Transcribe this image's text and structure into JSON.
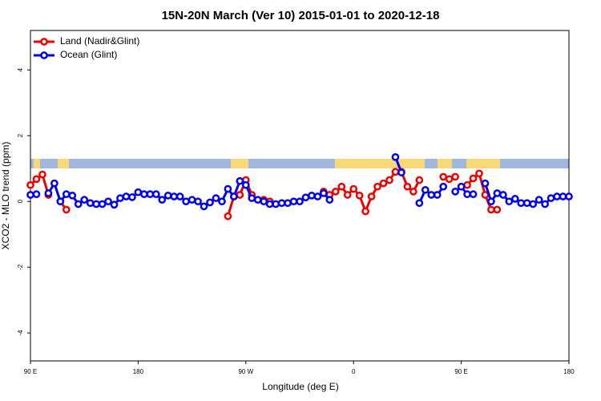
{
  "chart_data": {
    "type": "line",
    "title": "15N-20N March (Ver 10)   2015-01-01 to 2020-12-18",
    "x_label": "Longitude (deg E)",
    "y_label": "XCO2 - MLO trend (ppm)",
    "x": [
      90,
      95,
      100,
      105,
      110,
      115,
      120,
      125,
      130,
      135,
      140,
      145,
      150,
      155,
      160,
      165,
      170,
      175,
      180,
      185,
      190,
      195,
      200,
      205,
      210,
      215,
      220,
      225,
      230,
      235,
      240,
      245,
      250,
      255,
      260,
      265,
      270,
      275,
      280,
      285,
      290,
      295,
      300,
      305,
      310,
      315,
      320,
      325,
      330,
      335,
      340,
      345,
      350,
      355,
      360,
      365,
      370,
      375,
      380,
      385,
      390,
      395,
      400,
      405,
      410,
      415,
      420,
      425,
      430,
      435,
      440,
      445,
      450,
      455,
      460,
      465,
      470,
      475,
      480,
      485,
      490,
      495,
      500,
      505,
      510,
      515,
      520,
      525,
      530,
      535,
      540
    ],
    "xlim": [
      90,
      540
    ],
    "xticks": [
      {
        "value": 90,
        "label": "90 E"
      },
      180,
      {
        "value": 270,
        "label": "90 W"
      },
      {
        "value": 360,
        "label": "0"
      },
      {
        "value": 450,
        "label": "90 E"
      },
      {
        "value": 540,
        "label": "180"
      }
    ],
    "ylim": [
      -4.85,
      5.2
    ],
    "yticks": [
      -4,
      -2,
      0,
      2,
      4
    ],
    "legend": "top-left",
    "series": [
      {
        "name": "Land (Nadir&Glint)",
        "color": "#ee0000",
        "values": [
          0.5,
          0.68,
          0.82,
          0.2,
          null,
          0,
          -0.25,
          null,
          null,
          null,
          null,
          null,
          null,
          null,
          null,
          null,
          null,
          null,
          null,
          null,
          null,
          null,
          null,
          null,
          null,
          null,
          null,
          null,
          null,
          null,
          null,
          null,
          null,
          -0.45,
          0.15,
          0.2,
          0.65,
          0.2,
          null,
          0.05,
          0,
          null,
          null,
          null,
          null,
          null,
          null,
          null,
          null,
          0.3,
          0.2,
          0.3,
          0.45,
          0.2,
          0.38,
          0.18,
          -0.3,
          0.15,
          0.45,
          0.55,
          0.65,
          0.9,
          0.9,
          0.45,
          0.3,
          0.65,
          null,
          null,
          null,
          0.75,
          0.68,
          0.75,
          null,
          0.5,
          0.7,
          0.85,
          0.2,
          -0.25,
          -0.25,
          null,
          null,
          null,
          null,
          null,
          null,
          null,
          null,
          null,
          null,
          null,
          null
        ]
      },
      {
        "name": "Ocean (Glint)",
        "color": "#0000ee",
        "values": [
          0.2,
          0.22,
          null,
          0.25,
          0.55,
          0,
          0.22,
          0.18,
          -0.08,
          0.05,
          -0.05,
          -0.08,
          -0.08,
          0,
          -0.1,
          0.1,
          0.15,
          0.13,
          0.28,
          0.22,
          0.22,
          0.22,
          0.05,
          0.18,
          0.15,
          0.15,
          0,
          0.05,
          0,
          -0.15,
          -0.03,
          0.1,
          0,
          0.38,
          0.15,
          0.62,
          0.5,
          0.1,
          0.05,
          0,
          -0.08,
          -0.08,
          -0.05,
          -0.05,
          0,
          0,
          0.12,
          0.18,
          0.15,
          0.25,
          0.05,
          null,
          null,
          null,
          null,
          null,
          null,
          null,
          null,
          null,
          null,
          1.35,
          0.88,
          null,
          null,
          -0.05,
          0.35,
          0.2,
          0.2,
          0.45,
          null,
          0.3,
          0.45,
          0.22,
          0.22,
          null,
          0.55,
          0,
          0.25,
          0.2,
          0,
          0.08,
          -0.05,
          -0.05,
          -0.08,
          0.05,
          -0.08,
          0.1,
          0.15,
          0.15,
          0.15
        ]
      }
    ]
  }
}
